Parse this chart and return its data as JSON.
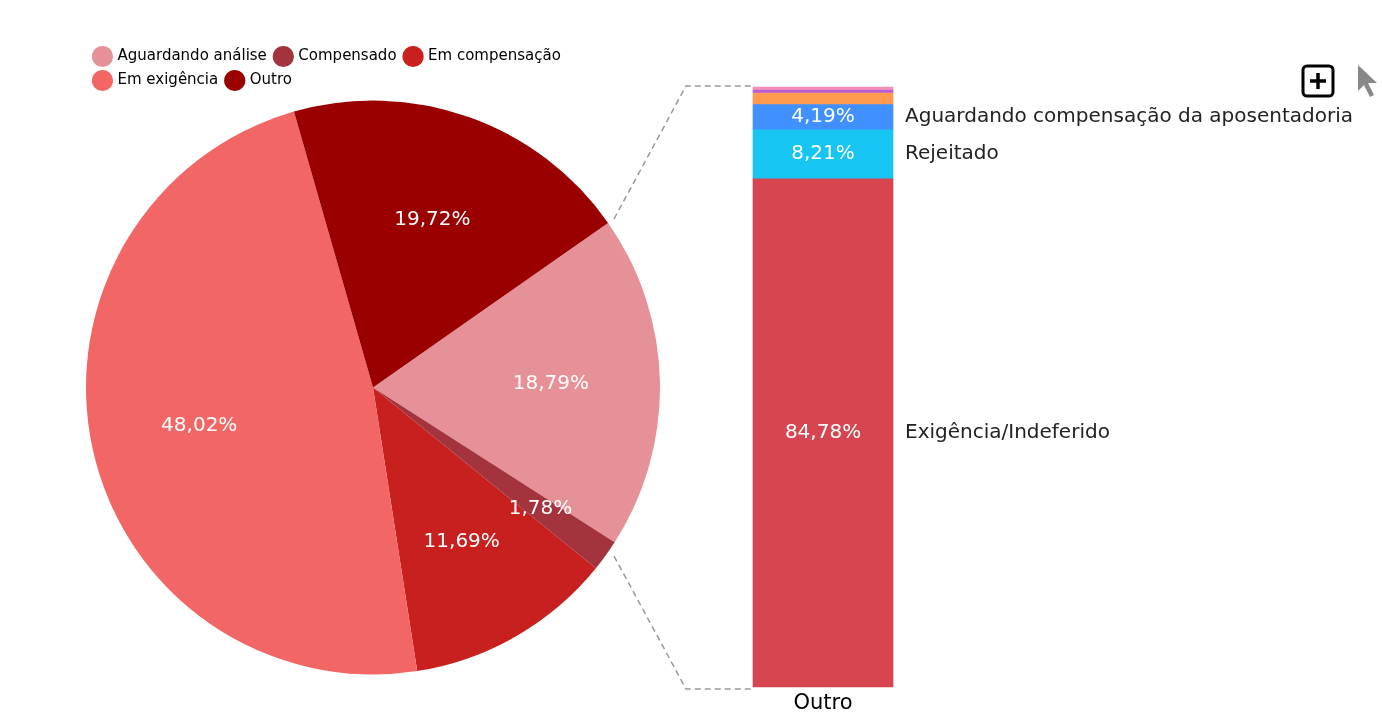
{
  "chart_data": [
    {
      "type": "pie",
      "categories": [
        "Aguardando análise",
        "Compensado",
        "Em compensação",
        "Em exigência",
        "Outro"
      ],
      "values": [
        18.79,
        1.78,
        11.69,
        48.02,
        19.72
      ],
      "colors": [
        "#e69097",
        "#a3343e",
        "#c81f1f",
        "#f26666",
        "#9b0000"
      ],
      "value_labels": [
        "18,79%",
        "1,78%",
        "11,69%",
        "48,02%",
        "19,72%"
      ],
      "legend": "top left"
    },
    {
      "type": "bar",
      "stacked": true,
      "categories": [
        "Outro"
      ],
      "tick_labels": "x",
      "legend": "right",
      "series": [
        {
          "name": "Exigência/Indeferido",
          "color": "#d64550",
          "values": [
            84.78
          ],
          "value_labels": [
            "84,78%"
          ]
        },
        {
          "name": "Rejeitado",
          "color": "#16c5f2",
          "values": [
            8.21
          ],
          "value_labels": [
            "8,21%"
          ]
        },
        {
          "name": "Aguardando compensação da aposentadoria",
          "color": "#4091ff",
          "values": [
            4.19
          ],
          "value_labels": [
            "4,19%"
          ]
        },
        {
          "color": "#ff9a4f",
          "values": [
            1.9
          ]
        },
        {
          "color": "#b95cd4",
          "values": [
            0.5
          ]
        },
        {
          "color": "#f090b8",
          "values": [
            0.42
          ]
        }
      ]
    }
  ]
}
